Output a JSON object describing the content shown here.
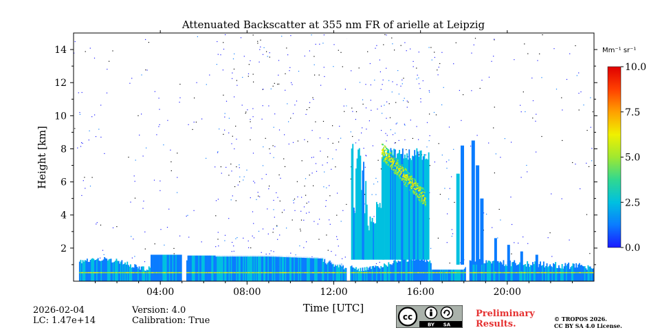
{
  "chart_data": {
    "type": "heatmap",
    "title": "Attenuated Backscatter at 355 nm FR of arielle at Leipzig",
    "xlabel": "Time [UTC]",
    "ylabel": "Height [km]",
    "xlim": [
      0,
      24
    ],
    "ylim": [
      0,
      15
    ],
    "x_ticks": [
      4,
      8,
      12,
      16,
      20
    ],
    "x_tick_labels": [
      "04:00",
      "08:00",
      "12:00",
      "16:00",
      "20:00"
    ],
    "y_ticks": [
      2,
      4,
      6,
      8,
      10,
      12,
      14
    ],
    "y_tick_labels": [
      "2",
      "4",
      "6",
      "8",
      "10",
      "12",
      "14"
    ],
    "colorbar": {
      "unit_label": "Mm⁻¹ sr⁻¹",
      "range": [
        0.0,
        10.0
      ],
      "ticks": [
        0.0,
        2.5,
        5.0,
        7.5,
        10.0
      ],
      "tick_labels": [
        "0.0",
        "2.5",
        "5.0",
        "7.5",
        "10.0"
      ],
      "colormap": [
        "#1a1aff",
        "#0a7cff",
        "#00c0e0",
        "#30d890",
        "#a0e830",
        "#f0f000",
        "#ffa000",
        "#ff4000",
        "#e00000"
      ]
    },
    "data_gaps_utc": [
      [
        5.0,
        5.15
      ],
      [
        12.6,
        12.75
      ],
      [
        18.1,
        18.25
      ]
    ],
    "layers": [
      {
        "name": "boundary_layer",
        "start": 0.25,
        "end": 24,
        "top_km": 1.5,
        "level": 1.4
      },
      {
        "name": "daytime_deep_layer",
        "start": 12.8,
        "end": 16.4,
        "top_km": 8.5,
        "level": 1.6
      },
      {
        "name": "cirrus_plume",
        "start": 14.2,
        "end": 16.2,
        "top_km": 8.2,
        "base_km": 5.3,
        "level": 5.5
      },
      {
        "name": "evening_columns",
        "start": 17.6,
        "end": 19.0,
        "top_km": 8.5,
        "level": 1.2
      }
    ]
  },
  "footer": {
    "date": "2026-02-04",
    "lc": "LC: 1.47e+14",
    "version": "Version: 4.0",
    "calibration": "Calibration: True",
    "license_badge": {
      "cc": "cc",
      "by": "BY",
      "sa": "SA"
    },
    "preliminary_line1": "Preliminary",
    "preliminary_line2": "Results.",
    "copyright_line1": "© TROPOS 2026.",
    "copyright_line2": "CC BY SA 4.0 License."
  }
}
